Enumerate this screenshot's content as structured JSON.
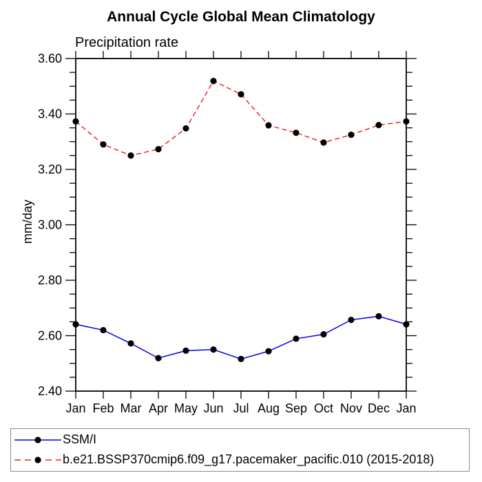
{
  "header": {
    "title": "Annual Cycle Global Mean Climatology",
    "subtitle": "Precipitation rate"
  },
  "chart_data": {
    "type": "line",
    "categories": [
      "Jan",
      "Feb",
      "Mar",
      "Apr",
      "May",
      "Jun",
      "Jul",
      "Aug",
      "Sep",
      "Oct",
      "Nov",
      "Dec",
      "Jan"
    ],
    "series": [
      {
        "name": "SSM/I",
        "color": "#0000e6",
        "line_style": "solid",
        "marker": "filled-circle",
        "marker_color": "#000000",
        "values": [
          2.641,
          2.62,
          2.572,
          2.519,
          2.546,
          2.55,
          2.516,
          2.544,
          2.589,
          2.605,
          2.657,
          2.67,
          2.641
        ]
      },
      {
        "name": "b.e21.BSSP370cmip6.f09_g17.pacemaker_pacific.010 (2015-2018)",
        "color": "#f52020",
        "line_style": "dashed",
        "marker": "filled-circle",
        "marker_color": "#000000",
        "values": [
          3.373,
          3.29,
          3.25,
          3.273,
          3.348,
          3.519,
          3.471,
          3.359,
          3.332,
          3.297,
          3.325,
          3.36,
          3.373
        ]
      }
    ],
    "ylabel": "mm/day",
    "xlabel": "",
    "ylim": [
      2.4,
      3.6
    ],
    "ytick_step": 0.2,
    "yminor_step": 0.05,
    "ytick_labels": [
      "2.40",
      "2.60",
      "2.80",
      "3.00",
      "3.20",
      "3.40",
      "3.60"
    ],
    "grid": false,
    "frame_color": "#000000",
    "legend_position": "bottom-left"
  }
}
